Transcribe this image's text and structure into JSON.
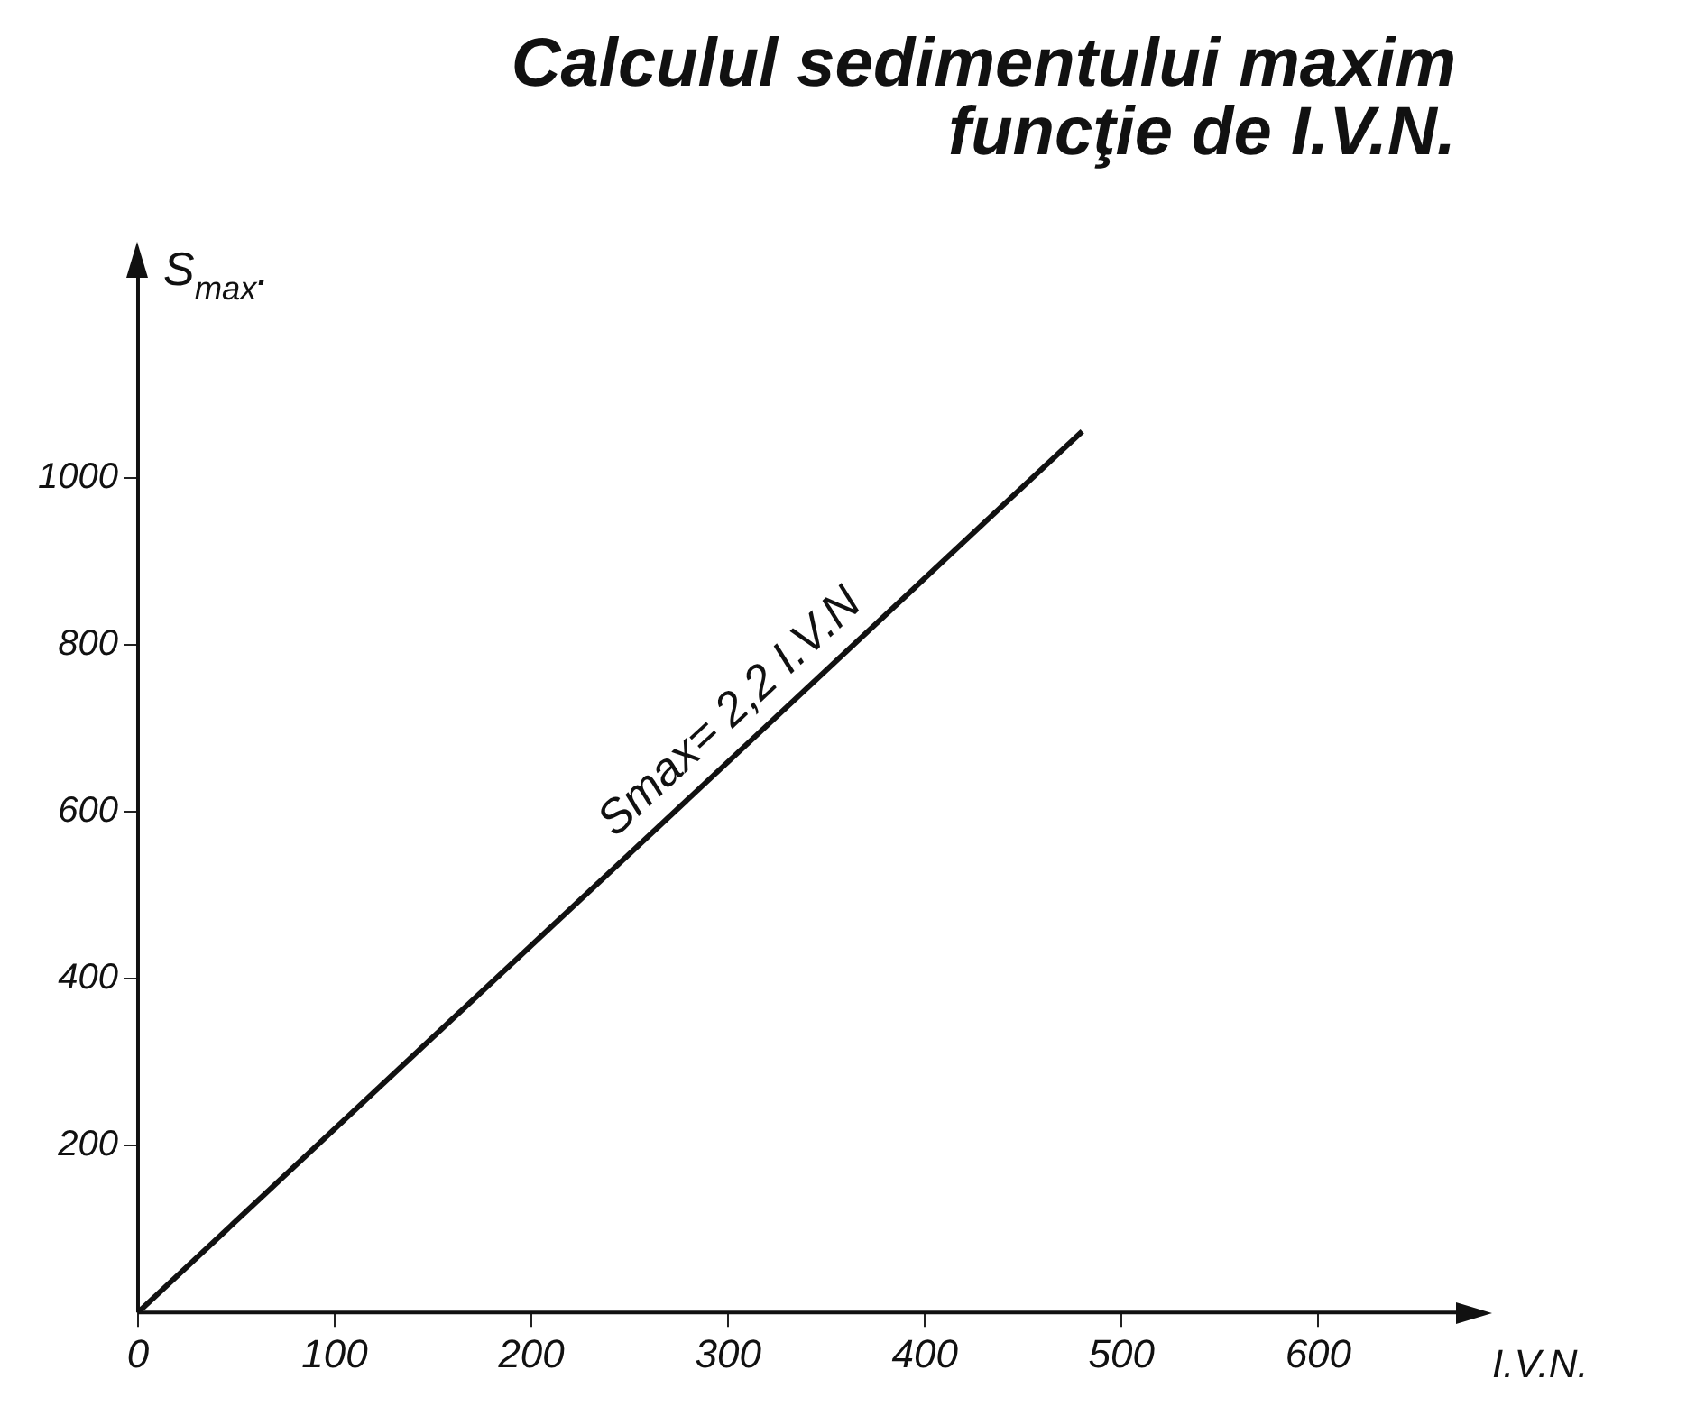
{
  "chart_data": {
    "type": "line",
    "title": "Calculul sedimentului maxim\nfuncţie de I.V.N.",
    "xlabel": "I.V.N.",
    "ylabel": "S$_{max}$.",
    "series": [
      {
        "x": [
          0,
          480
        ],
        "values": [
          0,
          1056
        ],
        "color": "#111111"
      }
    ],
    "annotations": [
      {
        "text": "Smax= 2,2 I.V.N",
        "x": 250,
        "y": 550
      }
    ],
    "xlim": [
      0,
      670
    ],
    "ylim": [
      0,
      1240
    ],
    "xticks": [
      0,
      100,
      200,
      300,
      400,
      500,
      600
    ],
    "yticks": [
      200,
      400,
      600,
      800,
      1000
    ],
    "grid": false,
    "legend": false,
    "marker": "none",
    "line_style": "solid"
  }
}
